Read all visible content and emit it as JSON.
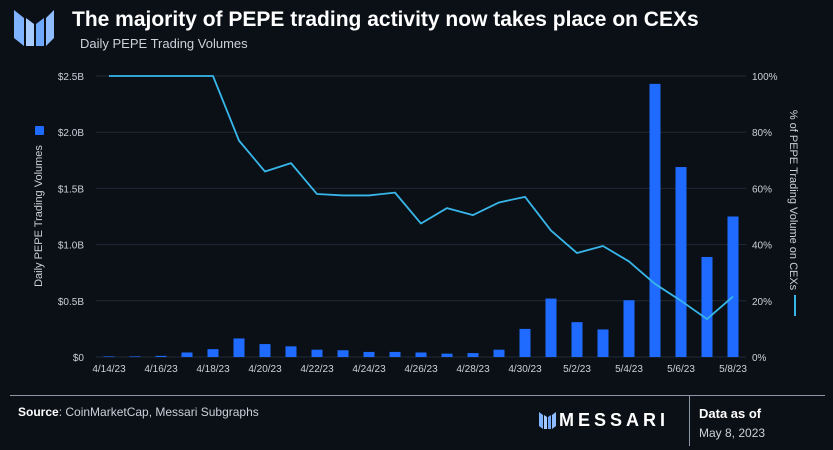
{
  "title": "The majority of PEPE trading activity now takes place on CEXs",
  "subtitle": "Daily PEPE Trading Volumes",
  "footer": {
    "source_label": "Source",
    "source_text": ": CoinMarketCap, Messari Subgraphs",
    "brand": "MESSARI",
    "data_as_of_label": "Data as of",
    "data_as_of_date": "May 8, 2023"
  },
  "colors": {
    "bar": "#1f6bff",
    "line": "#38b6ea",
    "background": "#0b1016",
    "grid": "#1f2a37"
  },
  "chart_data": {
    "type": "bar",
    "categories": [
      "4/14/23",
      "4/15/23",
      "4/16/23",
      "4/17/23",
      "4/18/23",
      "4/19/23",
      "4/20/23",
      "4/21/23",
      "4/22/23",
      "4/23/23",
      "4/24/23",
      "4/25/23",
      "4/26/23",
      "4/27/23",
      "4/28/23",
      "4/29/23",
      "4/30/23",
      "5/1/23",
      "5/2/23",
      "5/3/23",
      "5/4/23",
      "5/5/23",
      "5/6/23",
      "5/7/23",
      "5/8/23"
    ],
    "x_tick_labels": [
      "4/14/23",
      "4/16/23",
      "4/18/23",
      "4/20/23",
      "4/22/23",
      "4/24/23",
      "4/26/23",
      "4/28/23",
      "4/30/23",
      "5/2/23",
      "5/4/23",
      "5/6/23",
      "5/8/23"
    ],
    "series": [
      {
        "name": "Daily PEPE Trading Volumes",
        "axis": "left",
        "type": "bar",
        "values": [
          0.002,
          0.005,
          0.01,
          0.04,
          0.07,
          0.165,
          0.115,
          0.095,
          0.065,
          0.06,
          0.045,
          0.045,
          0.04,
          0.03,
          0.035,
          0.065,
          0.25,
          0.52,
          0.31,
          0.245,
          0.505,
          2.43,
          1.69,
          0.89,
          1.25
        ]
      },
      {
        "name": "% of PEPE Trading Volume on CEXs",
        "axis": "right",
        "type": "line",
        "values": [
          100,
          100,
          100,
          100,
          100,
          77,
          66,
          69,
          58,
          57.5,
          57.5,
          58.5,
          47.5,
          53,
          50.5,
          55,
          57,
          45,
          37,
          39.5,
          34,
          26,
          20,
          13.5,
          21.5
        ]
      }
    ],
    "ylabel": "Daily PEPE Trading Volumes",
    "y2label": "% of PEPE Trading Volume on CEXs",
    "ylim": [
      0,
      2.5
    ],
    "y2lim": [
      0,
      100
    ],
    "y_ticks": [
      0,
      0.5,
      1.0,
      1.5,
      2.0,
      2.5
    ],
    "y_tick_labels": [
      "$0",
      "$0.5B",
      "$1.0B",
      "$1.5B",
      "$2.0B",
      "$2.5B"
    ],
    "y2_ticks": [
      0,
      20,
      40,
      60,
      80,
      100
    ],
    "y2_tick_labels": [
      "0%",
      "20%",
      "40%",
      "60%",
      "80%",
      "100%"
    ]
  }
}
